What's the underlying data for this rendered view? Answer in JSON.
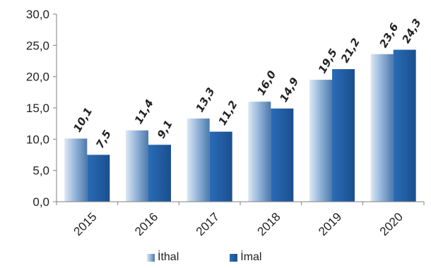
{
  "chart_data": {
    "type": "bar",
    "categories": [
      "2015",
      "2016",
      "2017",
      "2018",
      "2019",
      "2020"
    ],
    "series": [
      {
        "name": "İthal",
        "values": [
          10.1,
          11.4,
          13.3,
          16.0,
          19.5,
          23.6
        ],
        "labels": [
          "10,1",
          "11,4",
          "13,3",
          "16,0",
          "19,5",
          "23,6"
        ]
      },
      {
        "name": "İmal",
        "values": [
          7.5,
          9.1,
          11.2,
          14.9,
          21.2,
          24.3
        ],
        "labels": [
          "7,5",
          "9,1",
          "11,2",
          "14,9",
          "21,2",
          "24,3"
        ]
      }
    ],
    "yticks": [
      "0,0",
      "5,0",
      "10,0",
      "15,0",
      "20,0",
      "25,0",
      "30,0"
    ],
    "ylim": [
      0,
      30
    ],
    "grid": false,
    "legend_position": "bottom",
    "colors": {
      "ithal_top": "#dce8f4",
      "ithal_mid": "#8fb1d6",
      "ithal_bottom": "#4d79ab",
      "imal_top": "#2a6cb6",
      "imal_bottom": "#1a4f8f",
      "axis": "#808080"
    }
  }
}
